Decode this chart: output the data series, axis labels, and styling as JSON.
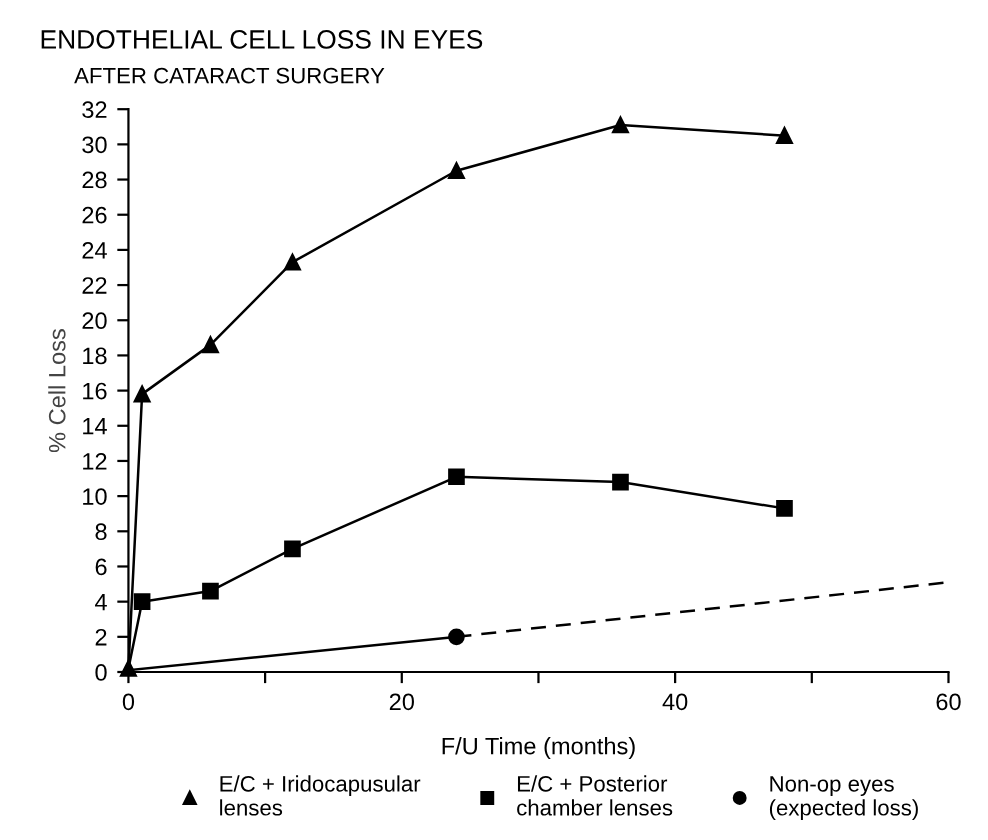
{
  "chart_data": {
    "type": "line",
    "title": "ENDOTHELIAL CELL LOSS IN EYES",
    "subtitle": "AFTER CATARACT SURGERY",
    "xlabel": "F/U Time (months)",
    "ylabel": "% Cell Loss",
    "series": [
      {
        "name": "E/C + Iridocapusular\nlenses",
        "color": "#000000",
        "marker": "triangle",
        "line_style": "solid",
        "x": [
          0,
          1,
          6,
          12,
          24,
          36,
          48
        ],
        "values": [
          0.2,
          15.8,
          18.6,
          23.3,
          28.5,
          31.1,
          30.5
        ]
      },
      {
        "name": "E/C + Posterior\nchamber lenses",
        "color": "#000000",
        "marker": "square",
        "line_style": "solid",
        "x": [
          0,
          1,
          6,
          12,
          24,
          36,
          48
        ],
        "values": [
          0.2,
          4.0,
          4.6,
          7.0,
          11.1,
          10.8,
          9.3
        ]
      },
      {
        "name": "Non-op eyes\n(expected loss)",
        "color": "#000000",
        "marker": "circle",
        "line_style": "solid",
        "x": [
          0,
          24
        ],
        "values": [
          0.1,
          2.0
        ]
      },
      {
        "color": "#000000",
        "marker": "none",
        "line_style": "dashed",
        "x": [
          24,
          60
        ],
        "values": [
          2.0,
          5.1
        ]
      }
    ],
    "xlim": [
      0,
      60
    ],
    "xticks": [
      0,
      {
        "value": 10,
        "label": null
      },
      20,
      {
        "value": 30,
        "label": null
      },
      40,
      {
        "value": 50,
        "label": null
      },
      60
    ],
    "ylim": [
      0,
      32
    ],
    "yticks": [
      0,
      2,
      4,
      6,
      8,
      10,
      12,
      14,
      16,
      18,
      20,
      22,
      24,
      26,
      28,
      30,
      32
    ],
    "grid": false,
    "legend": "bottom"
  }
}
